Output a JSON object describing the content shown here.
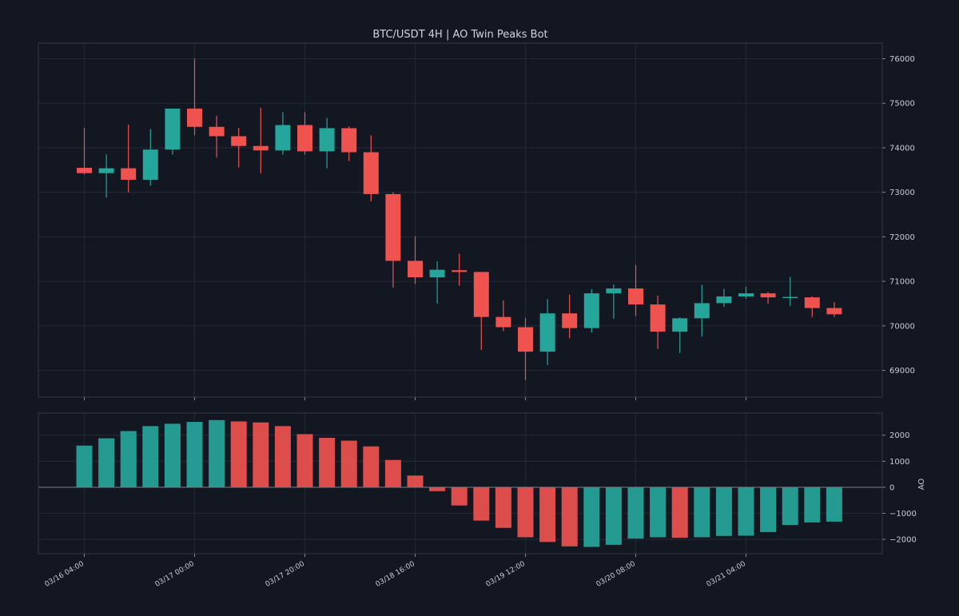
{
  "chart_data": [
    {
      "type": "candlestick",
      "title": "BTC/USDT  4H  |  AO Twin Peaks Bot",
      "ylim": [
        68400,
        76350
      ],
      "y_ticks": [
        69000,
        70000,
        71000,
        72000,
        73000,
        74000,
        75000,
        76000
      ],
      "grid": true,
      "colors": {
        "up": "#26a69a",
        "down": "#ef5350",
        "background": "#131722"
      },
      "candles": [
        {
          "open": 73550,
          "high": 74450,
          "low": 73400,
          "close": 73430
        },
        {
          "open": 73430,
          "high": 73850,
          "low": 72880,
          "close": 73540
        },
        {
          "open": 73540,
          "high": 74520,
          "low": 73000,
          "close": 73280
        },
        {
          "open": 73280,
          "high": 74420,
          "low": 73150,
          "close": 73960
        },
        {
          "open": 73960,
          "high": 74880,
          "low": 73850,
          "close": 74880
        },
        {
          "open": 74880,
          "high": 76000,
          "low": 74280,
          "close": 74470
        },
        {
          "open": 74470,
          "high": 74720,
          "low": 73780,
          "close": 74260
        },
        {
          "open": 74260,
          "high": 74450,
          "low": 73560,
          "close": 74040
        },
        {
          "open": 74040,
          "high": 74900,
          "low": 73420,
          "close": 73940
        },
        {
          "open": 73940,
          "high": 74800,
          "low": 73840,
          "close": 74510
        },
        {
          "open": 74510,
          "high": 74800,
          "low": 73850,
          "close": 73920
        },
        {
          "open": 73920,
          "high": 74670,
          "low": 73540,
          "close": 74440
        },
        {
          "open": 74440,
          "high": 74480,
          "low": 73700,
          "close": 73900
        },
        {
          "open": 73900,
          "high": 74280,
          "low": 72800,
          "close": 72960
        },
        {
          "open": 72960,
          "high": 73000,
          "low": 70860,
          "close": 71460
        },
        {
          "open": 71460,
          "high": 72010,
          "low": 70940,
          "close": 71090
        },
        {
          "open": 71090,
          "high": 71450,
          "low": 70500,
          "close": 71260
        },
        {
          "open": 71250,
          "high": 71620,
          "low": 70900,
          "close": 71210
        },
        {
          "open": 71210,
          "high": 71210,
          "low": 69460,
          "close": 70200
        },
        {
          "open": 70200,
          "high": 70570,
          "low": 69880,
          "close": 69970
        },
        {
          "open": 69970,
          "high": 70180,
          "low": 68780,
          "close": 69420
        },
        {
          "open": 69420,
          "high": 70600,
          "low": 69120,
          "close": 70280
        },
        {
          "open": 70280,
          "high": 70700,
          "low": 69720,
          "close": 69950
        },
        {
          "open": 69950,
          "high": 70820,
          "low": 69850,
          "close": 70730
        },
        {
          "open": 70730,
          "high": 70930,
          "low": 70160,
          "close": 70840
        },
        {
          "open": 70840,
          "high": 71370,
          "low": 70220,
          "close": 70480
        },
        {
          "open": 70480,
          "high": 70680,
          "low": 69480,
          "close": 69870
        },
        {
          "open": 69870,
          "high": 70190,
          "low": 69390,
          "close": 70170
        },
        {
          "open": 70170,
          "high": 70920,
          "low": 69760,
          "close": 70510
        },
        {
          "open": 70510,
          "high": 70830,
          "low": 70420,
          "close": 70660
        },
        {
          "open": 70660,
          "high": 70880,
          "low": 70610,
          "close": 70730
        },
        {
          "open": 70730,
          "high": 70760,
          "low": 70500,
          "close": 70640
        },
        {
          "open": 70640,
          "high": 71100,
          "low": 70450,
          "close": 70650
        },
        {
          "open": 70640,
          "high": 70660,
          "low": 70200,
          "close": 70400
        },
        {
          "open": 70400,
          "high": 70530,
          "low": 70200,
          "close": 70260
        }
      ]
    },
    {
      "type": "bar",
      "ylabel": "AO",
      "ylim": [
        -2550,
        2850
      ],
      "y_ticks": [
        -2000,
        -1000,
        0,
        1000,
        2000
      ],
      "y_tick_labels": [
        "−2000",
        "−1000",
        "0",
        "1000",
        "2000"
      ],
      "grid": true,
      "baseline": 0,
      "x_tick_labels": [
        "03/16 04:00",
        "03/17 00:00",
        "03/17 20:00",
        "03/18 16:00",
        "03/19 12:00",
        "03/20 08:00",
        "03/21 04:00"
      ],
      "x_tick_index": [
        0,
        5,
        10,
        15,
        20,
        25,
        30
      ],
      "values": [
        1600,
        1880,
        2160,
        2350,
        2440,
        2510,
        2580,
        2530,
        2490,
        2350,
        2040,
        1900,
        1790,
        1570,
        1050,
        450,
        -150,
        -700,
        -1280,
        -1560,
        -1920,
        -2100,
        -2270,
        -2290,
        -2210,
        -1970,
        -1920,
        -1940,
        -1920,
        -1870,
        -1860,
        -1720,
        -1450,
        -1350,
        -1320
      ],
      "bar_colors": [
        "up",
        "up",
        "up",
        "up",
        "up",
        "up",
        "up",
        "down",
        "down",
        "down",
        "down",
        "down",
        "down",
        "down",
        "down",
        "down",
        "down",
        "down",
        "down",
        "down",
        "down",
        "down",
        "down",
        "up",
        "up",
        "up",
        "up",
        "down",
        "up",
        "up",
        "up",
        "up",
        "up",
        "up",
        "up"
      ]
    }
  ]
}
